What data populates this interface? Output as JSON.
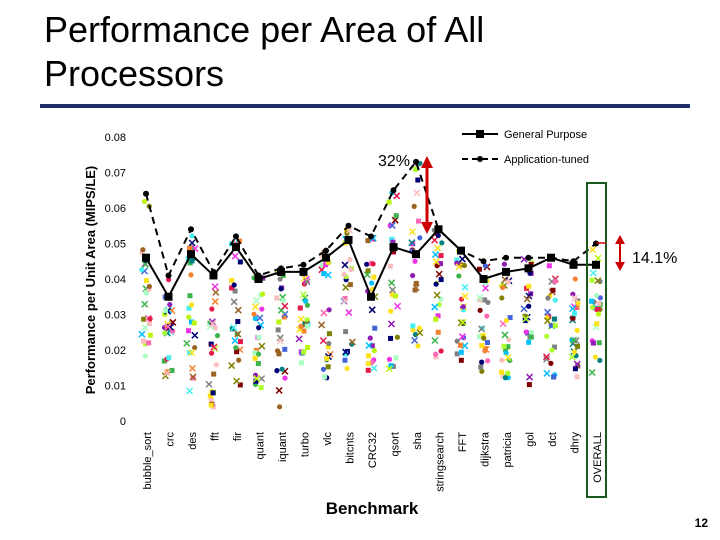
{
  "slide": {
    "title_line1": "Performance per Area of All",
    "title_line2": "Processors",
    "page_number": "12"
  },
  "annotations": {
    "gap_general": "32%",
    "gap_overall": "14.1%"
  },
  "colors": {
    "line": "#000000",
    "arrow": "#cc0000",
    "overall_box": "#1a5a1a",
    "title_rule": "#1f2d6b"
  },
  "chart_data": {
    "type": "line",
    "xlabel": "Benchmark",
    "ylabel": "Performance per Unit Area (MIPS/LE)",
    "ylim": [
      0,
      0.08
    ],
    "yticks": [
      "0",
      "0.01",
      "0.02",
      "0.03",
      "0.04",
      "0.05",
      "0.06",
      "0.07",
      "0.08"
    ],
    "categories": [
      "bubble_sort",
      "crc",
      "des",
      "fft",
      "fir",
      "quant",
      "iquant",
      "turbo",
      "vlc",
      "bitcnts",
      "CRC32",
      "qsort",
      "sha",
      "stringsearch",
      "FFT",
      "dijkstra",
      "patricia",
      "gol",
      "dct",
      "dhry",
      "OVERALL"
    ],
    "legend_position": "top-right",
    "series": [
      {
        "name": "General Purpose",
        "style": "solid",
        "marker": "square",
        "values": [
          0.046,
          0.035,
          0.047,
          0.041,
          0.049,
          0.04,
          0.042,
          0.042,
          0.046,
          0.051,
          0.035,
          0.049,
          0.047,
          0.054,
          0.048,
          0.04,
          0.042,
          0.043,
          0.046,
          0.044,
          0.044
        ]
      },
      {
        "name": "Application-tuned",
        "style": "dashed",
        "marker": "dot",
        "values": [
          0.064,
          0.041,
          0.054,
          0.042,
          0.052,
          0.041,
          0.043,
          0.044,
          0.048,
          0.055,
          0.052,
          0.065,
          0.073,
          0.054,
          0.048,
          0.045,
          0.046,
          0.046,
          0.046,
          0.045,
          0.05
        ]
      }
    ]
  }
}
